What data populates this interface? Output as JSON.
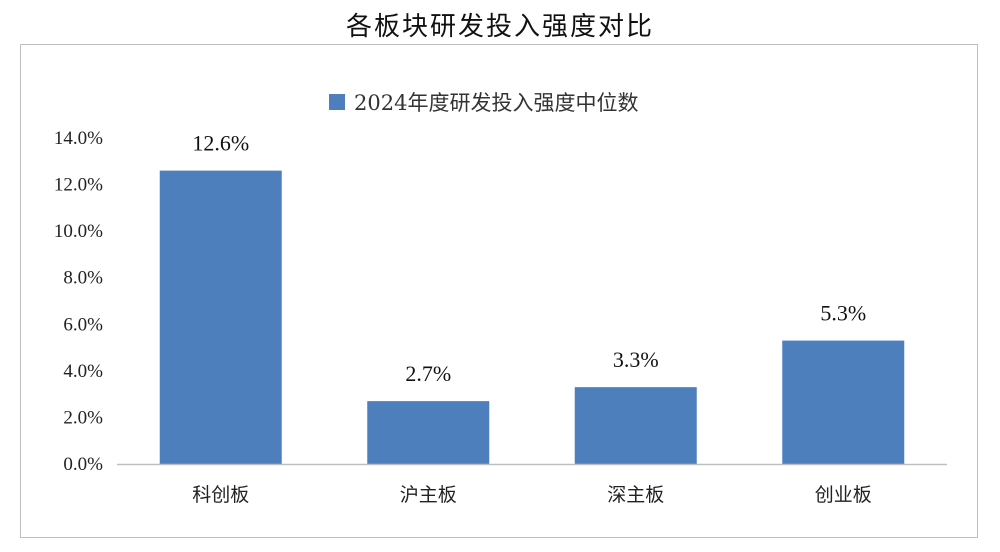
{
  "chart_data": {
    "type": "bar",
    "title": "各板块研发投入强度对比",
    "categories": [
      "科创板",
      "沪主板",
      "深主板",
      "创业板"
    ],
    "series": [
      {
        "name": "2024年度研发投入强度中位数",
        "values": [
          12.6,
          2.7,
          3.3,
          5.3
        ],
        "color": "#4E7FBD"
      }
    ],
    "data_labels": [
      "12.6%",
      "2.7%",
      "3.3%",
      "5.3%"
    ],
    "yticks": [
      "0.0%",
      "2.0%",
      "4.0%",
      "6.0%",
      "8.0%",
      "10.0%",
      "12.0%",
      "14.0%"
    ],
    "ylim": [
      0,
      14
    ],
    "grid": false,
    "legend": "top-center",
    "xlabel": "",
    "ylabel": ""
  }
}
